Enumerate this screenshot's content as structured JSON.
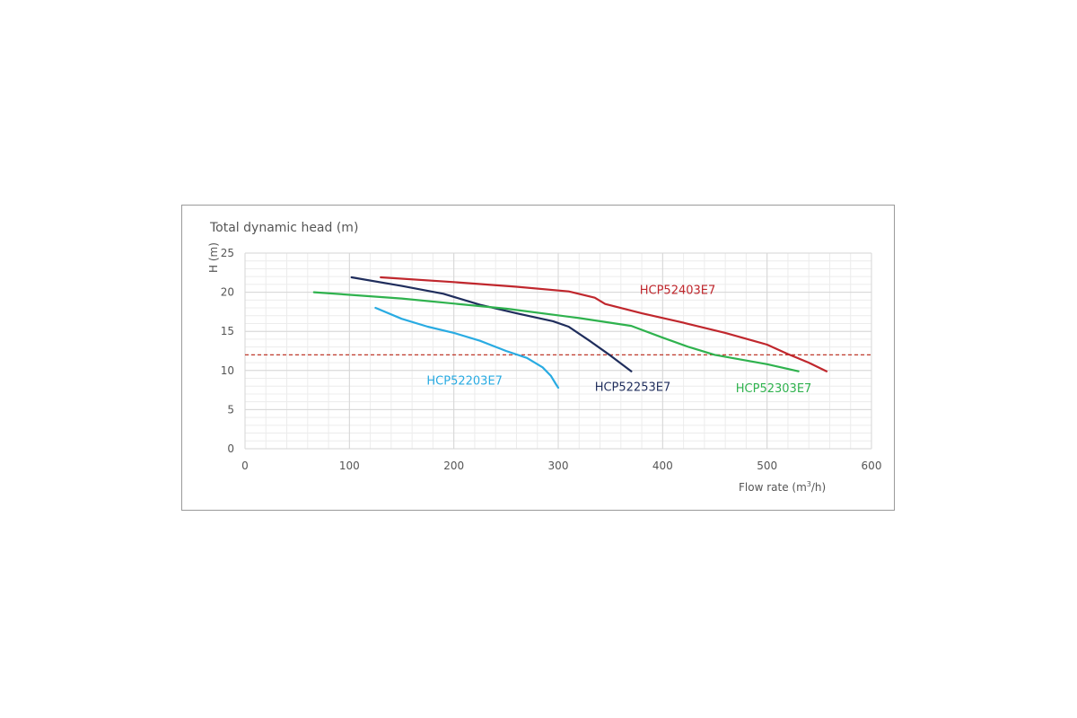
{
  "chart_data": {
    "type": "line",
    "title": "Total dynamic head (m)",
    "ylabel": "H (m)",
    "xlabel_prefix": "Flow rate (m",
    "xlabel_sup": "3",
    "xlabel_suffix": "/h)",
    "xlim": [
      0,
      600
    ],
    "ylim": [
      0,
      25
    ],
    "x_ticks": [
      0,
      100,
      200,
      300,
      400,
      500,
      600
    ],
    "y_ticks": [
      0,
      5,
      10,
      15,
      20,
      25
    ],
    "x_tick_labels": [
      "0",
      "100",
      "200",
      "300",
      "400",
      "500",
      "600"
    ],
    "y_tick_labels": [
      "0",
      "5",
      "10",
      "15",
      "20",
      "25"
    ],
    "grid": true,
    "reference_line": {
      "y": 12,
      "color": "#c0392b",
      "style": "dashed"
    },
    "series": [
      {
        "name": "HCP52203E7",
        "color": "#29abe2",
        "label_at": [
          174,
          8.2
        ],
        "points": [
          [
            125,
            18
          ],
          [
            150,
            16.6
          ],
          [
            175,
            15.6
          ],
          [
            200,
            14.8
          ],
          [
            225,
            13.8
          ],
          [
            250,
            12.5
          ],
          [
            270,
            11.6
          ],
          [
            285,
            10.4
          ],
          [
            293,
            9.3
          ],
          [
            298,
            8.2
          ],
          [
            300,
            7.8
          ]
        ]
      },
      {
        "name": "HCP52253E7",
        "color": "#1f2d5c",
        "label_at": [
          335,
          7.4
        ],
        "points": [
          [
            102,
            21.9
          ],
          [
            150,
            20.8
          ],
          [
            190,
            19.8
          ],
          [
            225,
            18.4
          ],
          [
            260,
            17.3
          ],
          [
            295,
            16.3
          ],
          [
            310,
            15.6
          ],
          [
            330,
            13.8
          ],
          [
            350,
            11.9
          ],
          [
            370,
            9.9
          ]
        ]
      },
      {
        "name": "HCP52303E7",
        "color": "#2fb24e",
        "label_at": [
          470,
          7.2
        ],
        "points": [
          [
            66,
            20
          ],
          [
            150,
            19.2
          ],
          [
            250,
            17.9
          ],
          [
            320,
            16.7
          ],
          [
            370,
            15.7
          ],
          [
            400,
            14.2
          ],
          [
            425,
            13
          ],
          [
            450,
            12
          ],
          [
            500,
            10.8
          ],
          [
            530,
            9.9
          ]
        ]
      },
      {
        "name": "HCP52403E7",
        "color": "#c0272d",
        "label_at": [
          378,
          19.8
        ],
        "points": [
          [
            130,
            21.9
          ],
          [
            200,
            21.3
          ],
          [
            260,
            20.7
          ],
          [
            310,
            20.1
          ],
          [
            335,
            19.3
          ],
          [
            345,
            18.5
          ],
          [
            380,
            17.3
          ],
          [
            420,
            16.1
          ],
          [
            460,
            14.8
          ],
          [
            500,
            13.3
          ],
          [
            520,
            12.1
          ],
          [
            540,
            11
          ],
          [
            557,
            9.9
          ]
        ]
      }
    ]
  }
}
